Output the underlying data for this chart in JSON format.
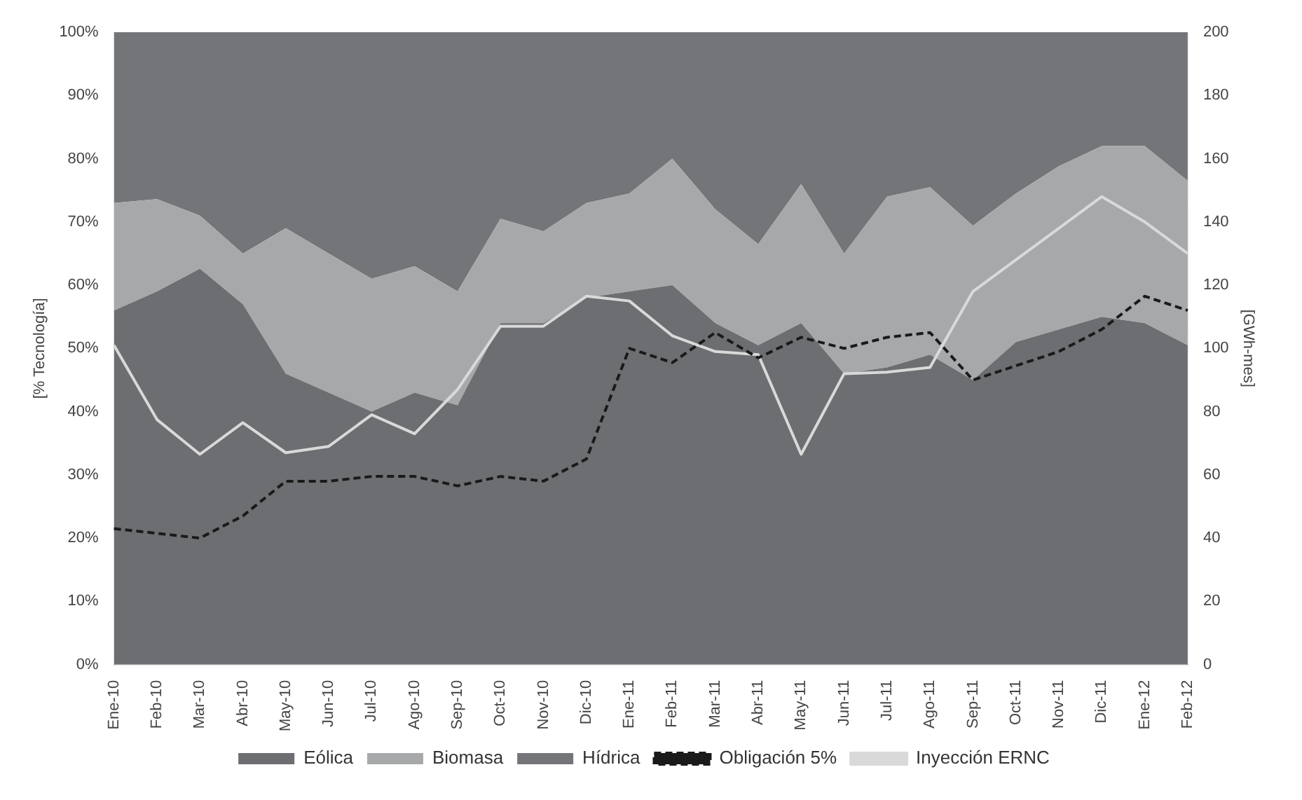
{
  "chart_data": {
    "type": "area",
    "stacked": true,
    "ylabel": "[% Tecnología]",
    "y2label": "[GWh-mes]",
    "categories": [
      "Ene-10",
      "Feb-10",
      "Mar-10",
      "Abr-10",
      "May-10",
      "Jun-10",
      "Jul-10",
      "Ago-10",
      "Sep-10",
      "Oct-10",
      "Nov-10",
      "Dic-10",
      "Ene-11",
      "Feb-11",
      "Mar-11",
      "Abr-11",
      "May-11",
      "Jun-11",
      "Jul-11",
      "Ago-11",
      "Sep-11",
      "Oct-11",
      "Nov-11",
      "Dic-11",
      "Ene-12",
      "Feb-12"
    ],
    "series": [
      {
        "name": "Eólica",
        "color": "#6d6e71",
        "values": [
          56,
          59,
          62.6,
          57,
          46,
          43,
          40,
          43,
          41,
          54,
          54,
          58,
          59,
          60,
          54,
          50.5,
          54,
          46,
          47,
          49,
          45,
          51,
          53,
          55,
          54,
          50.5
        ]
      },
      {
        "name": "Biomasa",
        "color": "#a7a8aa",
        "values": [
          17,
          14.6,
          8.4,
          8,
          23,
          22,
          21,
          20,
          18,
          16.5,
          14.5,
          15,
          15.5,
          20,
          18,
          16,
          22,
          19,
          27,
          26.5,
          24.4,
          23.5,
          25.8,
          27,
          28,
          26
        ]
      },
      {
        "name": "Hídrica",
        "color": "#747578",
        "values": [
          27,
          26.4,
          29,
          35,
          31,
          35,
          39,
          37,
          41,
          29.5,
          31.5,
          27,
          25.5,
          20,
          28,
          33.5,
          24,
          35,
          26,
          24.5,
          30.6,
          25.5,
          21.2,
          18,
          18,
          23.5
        ]
      },
      {
        "name": "Obligación 5%",
        "type": "line",
        "axis": "y2",
        "line_style": "dashed",
        "color": "#1a1a1a",
        "values": [
          43,
          41.5,
          40,
          47,
          58,
          58,
          59.5,
          59.5,
          56.5,
          59.5,
          58,
          65,
          100,
          95.5,
          105,
          97,
          103.5,
          100,
          103.5,
          105,
          90,
          94.5,
          99,
          106,
          116.5,
          112
        ]
      },
      {
        "name": "Inyección ERNC",
        "type": "line",
        "axis": "y2",
        "line_style": "solid",
        "color": "#d9d9d9",
        "values": [
          101,
          77.5,
          66.5,
          76.5,
          67,
          69,
          79,
          73,
          87,
          107,
          107,
          116.5,
          115,
          104,
          99,
          98,
          66.5,
          92,
          92.5,
          94,
          118,
          128,
          138,
          148,
          140,
          130
        ]
      }
    ],
    "ylim": [
      0,
      100
    ],
    "yticks": [
      {
        "value": 0,
        "label": "0%"
      },
      {
        "value": 10,
        "label": "10%"
      },
      {
        "value": 20,
        "label": "20%"
      },
      {
        "value": 30,
        "label": "30%"
      },
      {
        "value": 40,
        "label": "40%"
      },
      {
        "value": 50,
        "label": "50%"
      },
      {
        "value": 60,
        "label": "60%"
      },
      {
        "value": 70,
        "label": "70%"
      },
      {
        "value": 80,
        "label": "80%"
      },
      {
        "value": 90,
        "label": "90%"
      },
      {
        "value": 100,
        "label": "100%"
      }
    ],
    "y2lim": [
      0,
      200
    ],
    "y2ticks": [
      0,
      20,
      40,
      60,
      80,
      100,
      120,
      140,
      160,
      180,
      200
    ],
    "legend": "bottom",
    "marker": "none"
  }
}
